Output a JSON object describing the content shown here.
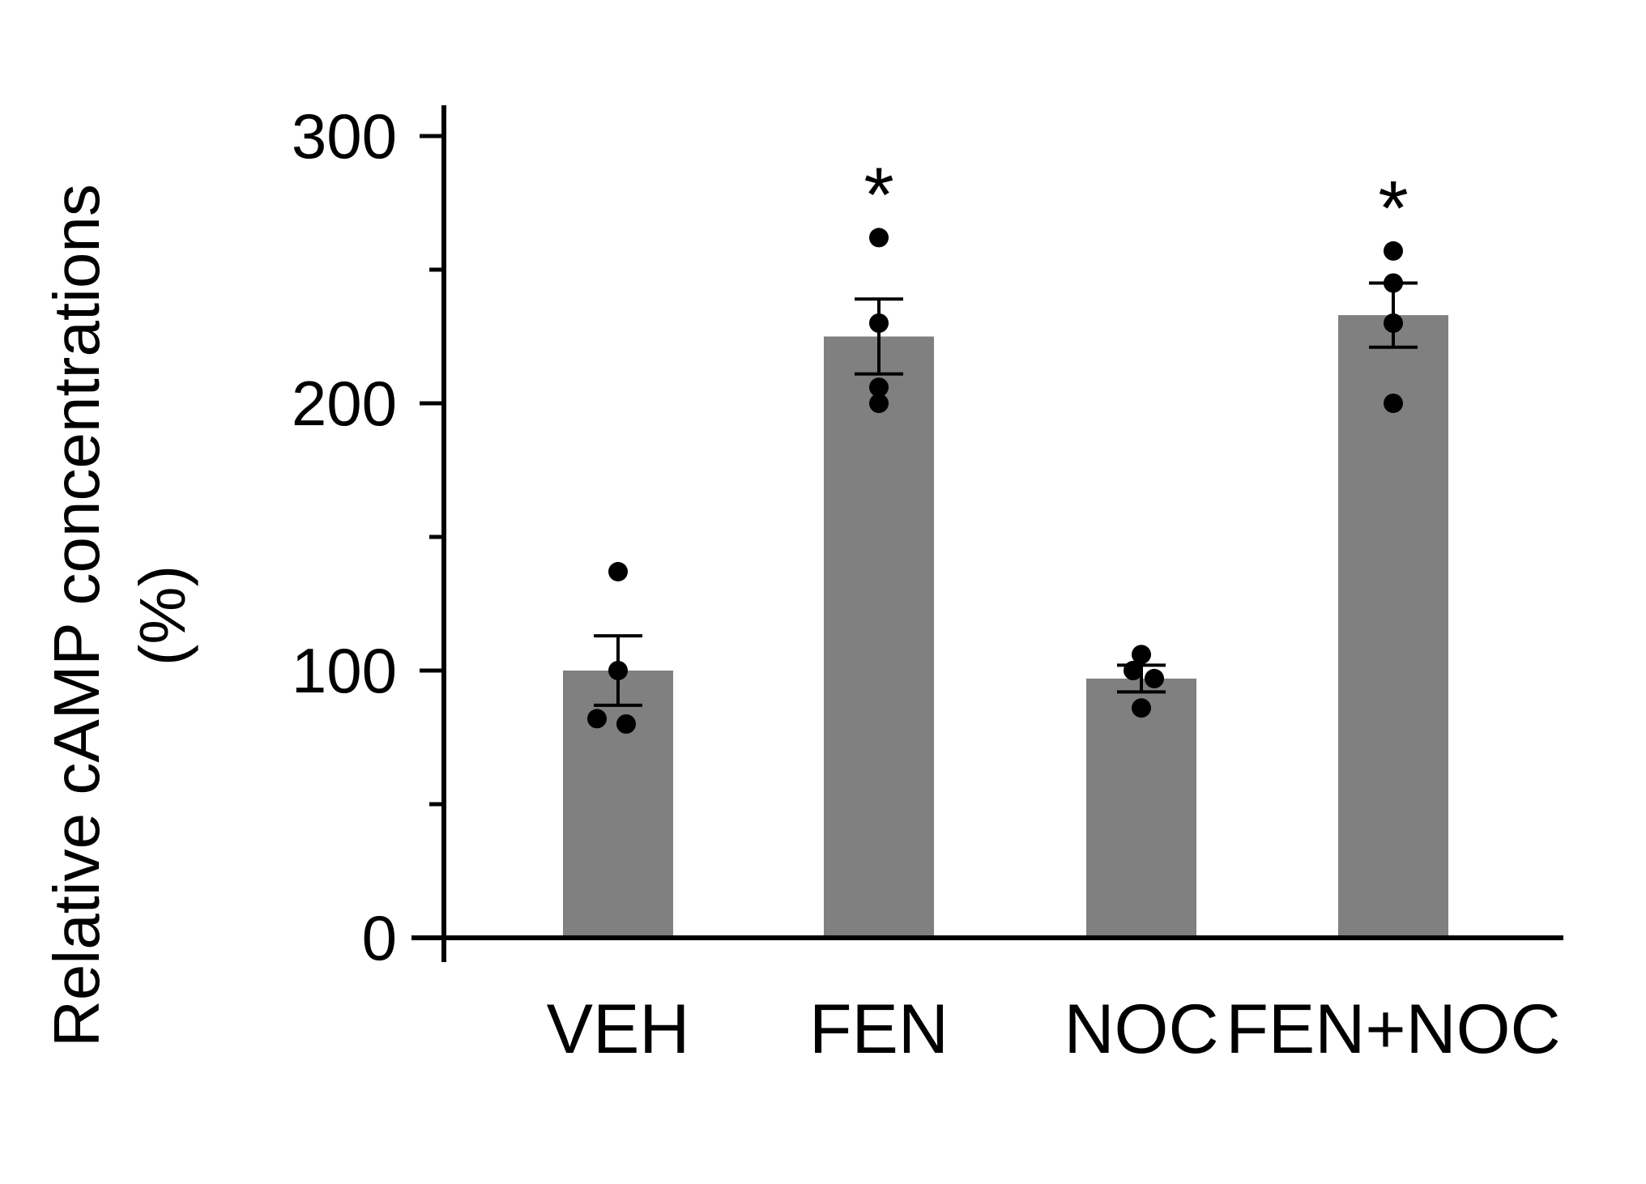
{
  "chart_data": {
    "type": "bar",
    "title": "",
    "xlabel": "",
    "ylabel": "Relative cAMP concentrations (%)",
    "ylabel_lines": [
      "Relative cAMP concentrations",
      "(%)"
    ],
    "ylim": [
      0,
      300
    ],
    "yticks": [
      0,
      100,
      200,
      300
    ],
    "yticks_minor": [
      50,
      150,
      250
    ],
    "grid": false,
    "categories": [
      "VEH",
      "FEN",
      "NOC",
      "FEN+NOC"
    ],
    "series": [
      {
        "values": [
          100,
          225,
          97,
          233
        ],
        "errors": [
          13,
          14,
          5,
          12
        ],
        "points": [
          [
            137,
            100,
            82,
            80
          ],
          [
            262,
            230,
            206,
            200
          ],
          [
            106,
            100,
            97,
            86
          ],
          [
            257,
            245,
            230,
            200
          ]
        ],
        "significance": [
          "",
          "*",
          "",
          "*"
        ]
      }
    ],
    "colors": {
      "bar": "#808080",
      "axis": "#000000",
      "points": "#000000"
    }
  }
}
